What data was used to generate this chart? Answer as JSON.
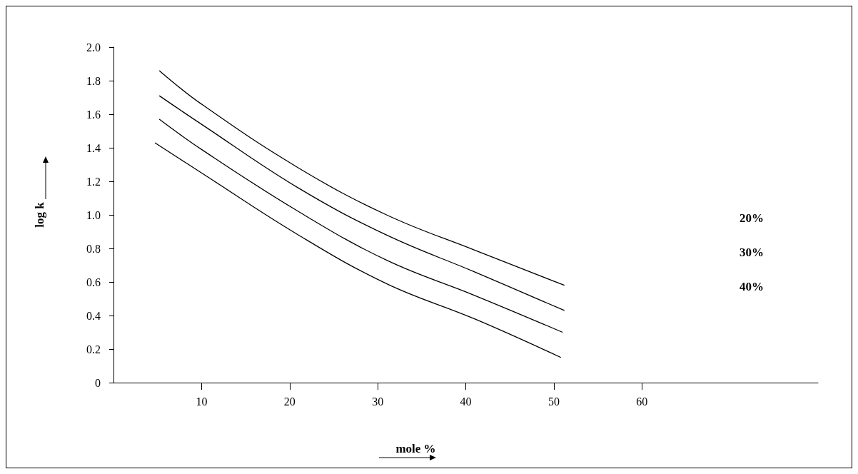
{
  "chart_data": {
    "type": "line",
    "xlabel": "mole %",
    "ylabel": "log k",
    "series": [
      {
        "color": "#000000",
        "x": [
          5.2,
          10,
          21,
          31,
          41,
          51.2
        ],
        "values": [
          1.86,
          1.66,
          1.28,
          1.0,
          0.79,
          0.58
        ]
      },
      {
        "color": "#000000",
        "x": [
          5.2,
          10,
          21,
          31,
          41,
          51.2
        ],
        "values": [
          1.71,
          1.54,
          1.16,
          0.88,
          0.66,
          0.43
        ]
      },
      {
        "color": "#000000",
        "x": [
          5.2,
          10,
          21,
          31,
          41,
          51
        ],
        "values": [
          1.57,
          1.39,
          1.02,
          0.73,
          0.52,
          0.3
        ]
      },
      {
        "color": "#000000",
        "x": [
          4.7,
          10,
          21,
          31,
          41,
          50.8
        ],
        "values": [
          1.43,
          1.25,
          0.88,
          0.59,
          0.38,
          0.15
        ]
      }
    ],
    "annotations": [
      "20%",
      "30%",
      "40%"
    ],
    "xlim": [
      0,
      80
    ],
    "xticks": [
      10,
      20,
      30,
      40,
      50,
      60
    ],
    "ylim": [
      0,
      2
    ],
    "yticks": [
      0,
      0.2,
      0.4,
      0.6,
      0.8,
      {
        "value": 1,
        "label": "1.0"
      },
      1.2,
      1.4,
      1.6,
      1.8,
      {
        "value": 2,
        "label": "2.0"
      }
    ],
    "grid": false,
    "marker": "none",
    "line_style": "solid"
  }
}
